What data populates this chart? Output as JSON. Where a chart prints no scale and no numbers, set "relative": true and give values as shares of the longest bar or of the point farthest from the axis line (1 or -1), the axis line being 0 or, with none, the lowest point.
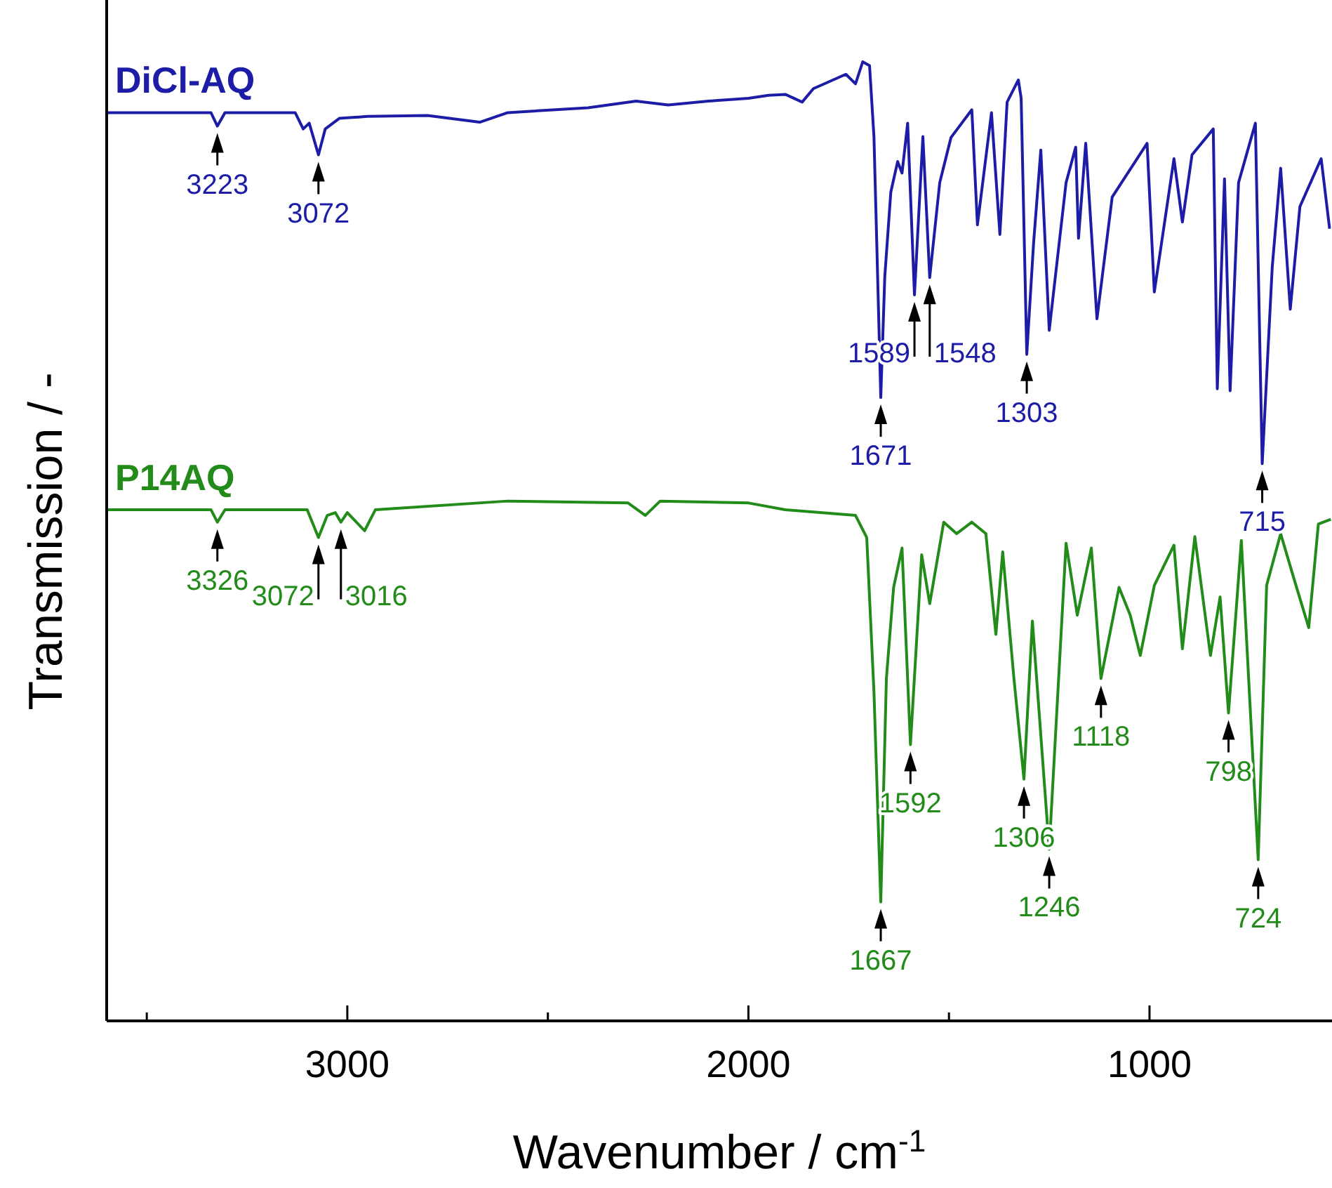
{
  "chart_data": {
    "type": "line",
    "relative": true,
    "xlabel": "Wavenumber / cm$^{-1}$",
    "ylabel": "Transmission / -",
    "xlim": [
      3600,
      545
    ],
    "xticks": [
      {
        "value": 3500,
        "label": null
      },
      3000,
      {
        "value": 2500,
        "label": null
      },
      2000,
      {
        "value": 1500,
        "label": null
      },
      1000
    ],
    "legend": false,
    "grid": false,
    "marker": "none",
    "line_style": "solid",
    "series": [
      {
        "name": "DiCl-AQ",
        "color": "#1c1ca6",
        "x": [
          3600,
          3340,
          3324,
          3305,
          3130,
          3110,
          3095,
          3072,
          3055,
          3020,
          2950,
          2800,
          2670,
          2600,
          2400,
          2280,
          2200,
          2100,
          2000,
          1950,
          1908,
          1866,
          1838,
          1757,
          1733,
          1715,
          1698,
          1687,
          1680,
          1670,
          1660,
          1645,
          1628,
          1617,
          1603,
          1586,
          1565,
          1548,
          1523,
          1495,
          1443,
          1429,
          1394,
          1373,
          1355,
          1327,
          1320,
          1306,
          1289,
          1271,
          1250,
          1208,
          1184,
          1177,
          1159,
          1131,
          1093,
          1006,
          988,
          939,
          918,
          894,
          841,
          831,
          813,
          799,
          778,
          736,
          719,
          694,
          673,
          649,
          625,
          572,
          551
        ],
        "values": [
          0.947,
          0.947,
          0.933,
          0.947,
          0.947,
          0.93,
          0.936,
          0.903,
          0.93,
          0.941,
          0.943,
          0.944,
          0.937,
          0.947,
          0.952,
          0.959,
          0.955,
          0.959,
          0.962,
          0.965,
          0.966,
          0.958,
          0.972,
          0.987,
          0.977,
          1,
          0.996,
          0.922,
          0.811,
          0.65,
          0.776,
          0.864,
          0.896,
          0.884,
          0.936,
          0.757,
          0.922,
          0.775,
          0.874,
          0.921,
          0.95,
          0.83,
          0.947,
          0.82,
          0.958,
          0.981,
          0.962,
          0.695,
          0.811,
          0.908,
          0.72,
          0.874,
          0.911,
          0.816,
          0.915,
          0.732,
          0.859,
          0.915,
          0.76,
          0.899,
          0.833,
          0.903,
          0.93,
          0.659,
          0.878,
          0.657,
          0.874,
          0.936,
          0.581,
          0.786,
          0.889,
          0.742,
          0.849,
          0.899,
          0.826
        ]
      },
      {
        "name": "P14AQ",
        "color": "#228b1a",
        "x": [
          3600,
          3340,
          3324,
          3305,
          3100,
          3072,
          3050,
          3030,
          3016,
          3000,
          2957,
          2930,
          2600,
          2300,
          2257,
          2220,
          2000,
          1908,
          1733,
          1705,
          1687,
          1670,
          1656,
          1638,
          1617,
          1596,
          1568,
          1548,
          1513,
          1481,
          1443,
          1408,
          1383,
          1366,
          1338,
          1313,
          1292,
          1250,
          1208,
          1180,
          1145,
          1121,
          1076,
          1048,
          1023,
          988,
          939,
          918,
          887,
          848,
          824,
          803,
          771,
          729,
          708,
          673,
          642,
          603,
          579,
          548
        ],
        "values": [
          0.533,
          0.533,
          0.52,
          0.533,
          0.533,
          0.504,
          0.527,
          0.53,
          0.52,
          0.53,
          0.511,
          0.533,
          0.542,
          0.54,
          0.527,
          0.542,
          0.54,
          0.533,
          0.527,
          0.504,
          0.343,
          0.124,
          0.357,
          0.452,
          0.493,
          0.288,
          0.486,
          0.435,
          0.52,
          0.508,
          0.52,
          0.508,
          0.403,
          0.489,
          0.357,
          0.252,
          0.417,
          0.179,
          0.498,
          0.423,
          0.493,
          0.357,
          0.452,
          0.423,
          0.381,
          0.454,
          0.496,
          0.388,
          0.505,
          0.381,
          0.442,
          0.321,
          0.501,
          0.168,
          0.454,
          0.508,
          0.464,
          0.41,
          0.518,
          0.523
        ]
      }
    ],
    "annotations": [
      {
        "text": "3223",
        "x": 3324,
        "y": 0.933
      },
      {
        "text": "3072",
        "x": 3072,
        "y": 0.903
      },
      {
        "text": "1671",
        "x": 1670,
        "y": 0.65
      },
      {
        "text": "1589",
        "x": 1586,
        "y": 0.757
      },
      {
        "text": "1548",
        "x": 1548,
        "y": 0.775
      },
      {
        "text": "1303",
        "x": 1306,
        "y": 0.695
      },
      {
        "text": "715",
        "x": 719,
        "y": 0.581
      },
      {
        "text": "3326",
        "x": 3324,
        "y": 0.52
      },
      {
        "text": "3072",
        "x": 3072,
        "y": 0.504
      },
      {
        "text": "3016",
        "x": 3016,
        "y": 0.52
      },
      {
        "text": "1667",
        "x": 1670,
        "y": 0.124
      },
      {
        "text": "1592",
        "x": 1596,
        "y": 0.288
      },
      {
        "text": "1306",
        "x": 1313,
        "y": 0.252
      },
      {
        "text": "1246",
        "x": 1250,
        "y": 0.179
      },
      {
        "text": "1118",
        "x": 1121,
        "y": 0.357
      },
      {
        "text": "798",
        "x": 803,
        "y": 0.321
      },
      {
        "text": "724",
        "x": 729,
        "y": 0.168
      }
    ]
  }
}
